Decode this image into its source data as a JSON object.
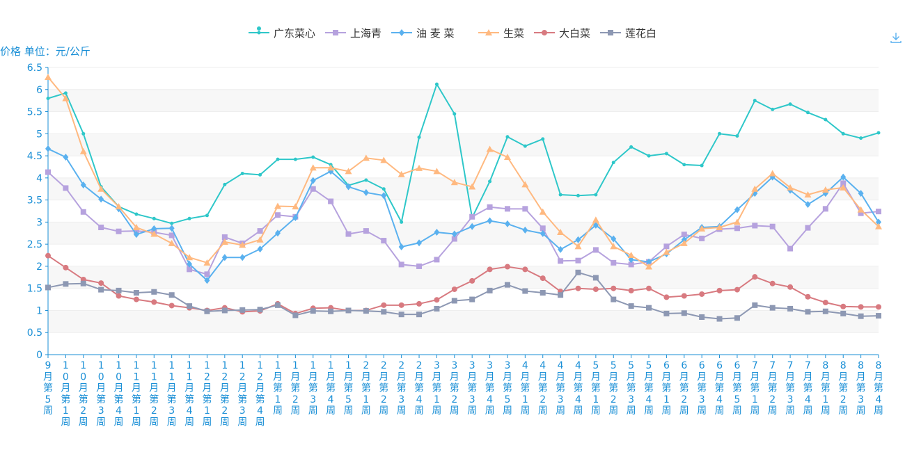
{
  "chart_data": {
    "type": "line",
    "ylabel": "价格 单位：元/公斤",
    "ylim": [
      0,
      6.5
    ],
    "yticks": [
      "0",
      "0.5",
      "1",
      "1.5",
      "2",
      "2.5",
      "3",
      "3.5",
      "4",
      "4.5",
      "5",
      "5.5",
      "6",
      "6.5"
    ],
    "categories": [
      "9月第5周",
      "10月第1周",
      "10月第2周",
      "10月第3周",
      "10月第4周",
      "11月第1周",
      "11月第2周",
      "11月第3周",
      "11月第4周",
      "12月第1周",
      "12月第2周",
      "12月第3周",
      "12月第4周",
      "1月第1周",
      "1月第2周",
      "1月第3周",
      "1月第4周",
      "1月第5周",
      "2月第1周",
      "2月第2周",
      "2月第3周",
      "2月第4周",
      "3月第1周",
      "3月第2周",
      "3月第3周",
      "3月第4周",
      "3月第5周",
      "4月第1周",
      "4月第2周",
      "4月第3周",
      "4月第4周",
      "5月第1周",
      "5月第2周",
      "5月第3周",
      "5月第4周",
      "6月第1周",
      "6月第2周",
      "6月第3周",
      "6月第4周",
      "6月第5周",
      "7月第1周",
      "7月第2周",
      "7月第3周",
      "7月第4周",
      "8月第1周",
      "8月第2周",
      "8月第3周",
      "8月第4周"
    ],
    "grid": "horizontal bands",
    "legend_position": "top-center",
    "series": [
      {
        "name": "广东菜心",
        "color": "#2ec7c9",
        "marker": "pin",
        "values": [
          5.8,
          5.92,
          5.0,
          3.8,
          3.35,
          3.18,
          3.08,
          2.97,
          3.08,
          3.15,
          3.85,
          4.1,
          4.07,
          4.42,
          4.42,
          4.47,
          4.3,
          3.83,
          3.95,
          3.75,
          3.0,
          4.92,
          6.12,
          5.45,
          3.1,
          3.92,
          4.93,
          4.72,
          4.88,
          3.62,
          3.6,
          3.62,
          4.35,
          4.7,
          4.5,
          4.55,
          4.3,
          4.28,
          5.0,
          4.95,
          5.75,
          5.55,
          5.67,
          5.48,
          5.32,
          5.0,
          4.9,
          5.02
        ]
      },
      {
        "name": "上海青",
        "color": "#b6a2de",
        "marker": "square",
        "values": [
          4.13,
          3.77,
          3.23,
          2.88,
          2.79,
          2.8,
          2.77,
          2.7,
          1.93,
          1.82,
          2.66,
          2.52,
          2.8,
          3.16,
          3.12,
          3.75,
          3.47,
          2.73,
          2.8,
          2.58,
          2.04,
          2.0,
          2.15,
          2.62,
          3.12,
          3.34,
          3.3,
          3.3,
          2.86,
          2.12,
          2.13,
          2.37,
          2.08,
          2.04,
          2.1,
          2.45,
          2.72,
          2.63,
          2.84,
          2.86,
          2.92,
          2.9,
          2.4,
          2.87,
          3.3,
          3.88,
          3.2,
          3.24
        ]
      },
      {
        "name": "油 麦 菜",
        "color": "#5ab1ef",
        "marker": "diamond",
        "values": [
          4.66,
          4.47,
          3.84,
          3.52,
          3.3,
          2.72,
          2.85,
          2.86,
          2.05,
          1.68,
          2.2,
          2.2,
          2.39,
          2.75,
          3.1,
          3.94,
          4.15,
          3.8,
          3.67,
          3.6,
          2.44,
          2.53,
          2.77,
          2.73,
          2.9,
          3.03,
          2.96,
          2.82,
          2.74,
          2.38,
          2.6,
          2.93,
          2.62,
          2.15,
          2.1,
          2.28,
          2.6,
          2.88,
          2.9,
          3.28,
          3.65,
          4.02,
          3.72,
          3.4,
          3.65,
          4.02,
          3.65,
          3.0
        ]
      },
      {
        "name": "生菜",
        "color": "#ffb980",
        "marker": "triangle",
        "values": [
          6.28,
          5.8,
          4.6,
          3.75,
          3.35,
          2.88,
          2.73,
          2.52,
          2.2,
          2.08,
          2.55,
          2.48,
          2.6,
          3.36,
          3.35,
          4.23,
          4.23,
          4.15,
          4.45,
          4.4,
          4.08,
          4.22,
          4.15,
          3.9,
          3.8,
          4.65,
          4.47,
          3.85,
          3.23,
          2.77,
          2.45,
          3.05,
          2.45,
          2.25,
          1.99,
          2.32,
          2.52,
          2.85,
          2.88,
          3.0,
          3.75,
          4.1,
          3.78,
          3.62,
          3.73,
          3.78,
          3.28,
          2.9
        ]
      },
      {
        "name": "大白菜",
        "color": "#d87a80",
        "marker": "circle",
        "values": [
          2.24,
          1.97,
          1.7,
          1.62,
          1.33,
          1.25,
          1.19,
          1.11,
          1.06,
          1.0,
          1.06,
          0.97,
          0.99,
          1.15,
          0.93,
          1.05,
          1.06,
          1.0,
          1.0,
          1.12,
          1.12,
          1.15,
          1.24,
          1.48,
          1.67,
          1.93,
          1.99,
          1.93,
          1.73,
          1.43,
          1.5,
          1.48,
          1.5,
          1.45,
          1.5,
          1.3,
          1.33,
          1.37,
          1.45,
          1.47,
          1.76,
          1.61,
          1.53,
          1.31,
          1.18,
          1.09,
          1.08,
          1.08
        ]
      },
      {
        "name": "莲花白",
        "color": "#8d98b3",
        "marker": "square",
        "values": [
          1.52,
          1.6,
          1.61,
          1.47,
          1.45,
          1.4,
          1.42,
          1.35,
          1.1,
          0.98,
          1.0,
          1.01,
          1.02,
          1.12,
          0.89,
          0.99,
          0.98,
          1.0,
          0.99,
          0.97,
          0.91,
          0.91,
          1.04,
          1.22,
          1.25,
          1.45,
          1.58,
          1.44,
          1.4,
          1.35,
          1.86,
          1.74,
          1.25,
          1.1,
          1.06,
          0.93,
          0.94,
          0.85,
          0.81,
          0.83,
          1.12,
          1.06,
          1.04,
          0.97,
          0.98,
          0.93,
          0.87,
          0.88
        ]
      }
    ]
  },
  "icons": {
    "download": "download-icon"
  }
}
